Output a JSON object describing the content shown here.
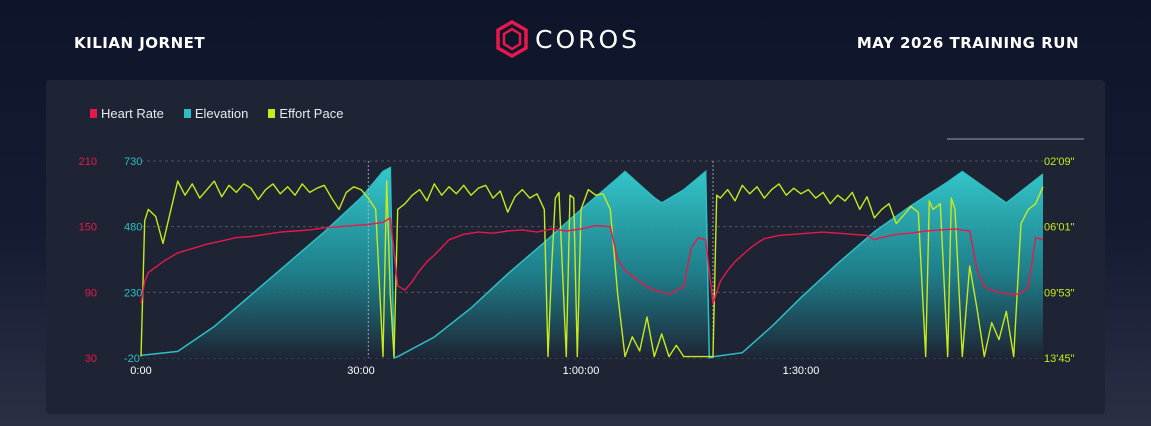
{
  "header": {
    "athlete": "KILIAN JORNET",
    "brand": "COROS",
    "session": "MAY 2026 TRAINING RUN"
  },
  "colors": {
    "heart_rate": "#e8184d",
    "elevation": "#2dbfc4",
    "effort_pace": "#c6ea1b"
  },
  "chart_data": {
    "type": "line",
    "x_unit": "elapsed time (min)",
    "xlim": [
      0,
      123
    ],
    "x_ticks": [
      {
        "value": 0,
        "label": "0:00"
      },
      {
        "value": 30,
        "label": "30:00"
      },
      {
        "value": 60,
        "label": "1:00:00"
      },
      {
        "value": 90,
        "label": "1:30:00"
      }
    ],
    "lap_markers": [
      31,
      78
    ],
    "axes": {
      "heart_rate": {
        "side": "left-outer",
        "ylim": [
          30,
          210
        ],
        "ticks": [
          "210",
          "150",
          "90",
          "30"
        ]
      },
      "elevation": {
        "side": "left-inner",
        "ylim": [
          -20,
          730
        ],
        "ticks": [
          "730",
          "480",
          "230",
          "-20"
        ]
      },
      "effort_pace": {
        "side": "right",
        "ylim_sec_per_km": [
          129,
          825
        ],
        "reversed": true,
        "ticks": [
          "02'09\"",
          "06'01\"",
          "09'53\"",
          "13'45\""
        ]
      }
    },
    "grid": true,
    "legend": {
      "position": "top-left"
    },
    "series": [
      {
        "name": "Heart Rate",
        "color_key": "heart_rate",
        "axis": "heart_rate",
        "points": [
          [
            0,
            80
          ],
          [
            0.5,
            100
          ],
          [
            1,
            108
          ],
          [
            2,
            113
          ],
          [
            3,
            118
          ],
          [
            4,
            122
          ],
          [
            5,
            126
          ],
          [
            6,
            128
          ],
          [
            7,
            130
          ],
          [
            9,
            134
          ],
          [
            11,
            137
          ],
          [
            13,
            140
          ],
          [
            15,
            141
          ],
          [
            17,
            143
          ],
          [
            19,
            145
          ],
          [
            21,
            146
          ],
          [
            23,
            147
          ],
          [
            25,
            149
          ],
          [
            27,
            150
          ],
          [
            29,
            151
          ],
          [
            31,
            152
          ],
          [
            32,
            153
          ],
          [
            33,
            154
          ],
          [
            34,
            158
          ],
          [
            35,
            96
          ],
          [
            36,
            92
          ],
          [
            37,
            100
          ],
          [
            38,
            110
          ],
          [
            39,
            118
          ],
          [
            40,
            124
          ],
          [
            41,
            131
          ],
          [
            42,
            138
          ],
          [
            44,
            143
          ],
          [
            46,
            145
          ],
          [
            48,
            144
          ],
          [
            50,
            146
          ],
          [
            52,
            147
          ],
          [
            54,
            145
          ],
          [
            56,
            148
          ],
          [
            58,
            146
          ],
          [
            60,
            148
          ],
          [
            62,
            151
          ],
          [
            64,
            150
          ],
          [
            65,
            120
          ],
          [
            66,
            110
          ],
          [
            67,
            105
          ],
          [
            68,
            100
          ],
          [
            69,
            95
          ],
          [
            70,
            92
          ],
          [
            71,
            90
          ],
          [
            72,
            88
          ],
          [
            73,
            92
          ],
          [
            74,
            95
          ],
          [
            75,
            130
          ],
          [
            76,
            140
          ],
          [
            77,
            138
          ],
          [
            78,
            80
          ],
          [
            79,
            100
          ],
          [
            80,
            110
          ],
          [
            81,
            118
          ],
          [
            82,
            124
          ],
          [
            83,
            130
          ],
          [
            84,
            135
          ],
          [
            85,
            139
          ],
          [
            87,
            142
          ],
          [
            89,
            143
          ],
          [
            91,
            144
          ],
          [
            93,
            145
          ],
          [
            95,
            144
          ],
          [
            97,
            143
          ],
          [
            99,
            142
          ],
          [
            100,
            138
          ],
          [
            101,
            140
          ],
          [
            103,
            143
          ],
          [
            105,
            144
          ],
          [
            107,
            146
          ],
          [
            109,
            147
          ],
          [
            111,
            148
          ],
          [
            113,
            146
          ],
          [
            114,
            110
          ],
          [
            115,
            95
          ],
          [
            116,
            92
          ],
          [
            117,
            90
          ],
          [
            118,
            89
          ],
          [
            119,
            88
          ],
          [
            120,
            89
          ],
          [
            121,
            95
          ],
          [
            122,
            140
          ],
          [
            123,
            138
          ]
        ]
      },
      {
        "name": "Elevation",
        "color_key": "elevation",
        "axis": "elevation",
        "points": [
          [
            0,
            -10
          ],
          [
            5,
            5
          ],
          [
            10,
            100
          ],
          [
            15,
            220
          ],
          [
            20,
            340
          ],
          [
            25,
            460
          ],
          [
            30,
            590
          ],
          [
            33,
            690
          ],
          [
            34,
            705
          ],
          [
            34.5,
            -20
          ],
          [
            35,
            -15
          ],
          [
            40,
            60
          ],
          [
            45,
            170
          ],
          [
            50,
            300
          ],
          [
            55,
            420
          ],
          [
            60,
            545
          ],
          [
            65,
            665
          ],
          [
            66,
            690
          ],
          [
            70,
            590
          ],
          [
            71,
            570
          ],
          [
            74,
            620
          ],
          [
            77,
            690
          ],
          [
            77.5,
            -20
          ],
          [
            78,
            -15
          ],
          [
            82,
            0
          ],
          [
            86,
            100
          ],
          [
            90,
            210
          ],
          [
            95,
            340
          ],
          [
            100,
            460
          ],
          [
            105,
            560
          ],
          [
            110,
            650
          ],
          [
            112,
            690
          ],
          [
            118,
            570
          ],
          [
            123,
            680
          ]
        ]
      },
      {
        "name": "Effort Pace",
        "color_key": "effort_pace",
        "axis": "effort_pace",
        "points": [
          [
            0,
            820
          ],
          [
            0.5,
            340
          ],
          [
            1,
            300
          ],
          [
            2,
            325
          ],
          [
            3,
            420
          ],
          [
            4,
            310
          ],
          [
            5,
            200
          ],
          [
            6,
            250
          ],
          [
            7,
            210
          ],
          [
            8,
            260
          ],
          [
            9,
            230
          ],
          [
            10,
            200
          ],
          [
            11,
            255
          ],
          [
            12,
            215
          ],
          [
            13,
            240
          ],
          [
            14,
            210
          ],
          [
            15,
            225
          ],
          [
            16,
            265
          ],
          [
            17,
            230
          ],
          [
            18,
            210
          ],
          [
            19,
            245
          ],
          [
            20,
            220
          ],
          [
            21,
            250
          ],
          [
            22,
            210
          ],
          [
            23,
            240
          ],
          [
            24,
            225
          ],
          [
            25,
            215
          ],
          [
            26,
            260
          ],
          [
            27,
            300
          ],
          [
            28,
            240
          ],
          [
            29,
            220
          ],
          [
            30,
            230
          ],
          [
            31,
            260
          ],
          [
            32,
            300
          ],
          [
            33,
            820
          ],
          [
            33.5,
            200
          ],
          [
            34,
            600
          ],
          [
            34.5,
            820
          ],
          [
            35,
            300
          ],
          [
            36,
            280
          ],
          [
            37,
            250
          ],
          [
            38,
            230
          ],
          [
            39,
            270
          ],
          [
            40,
            210
          ],
          [
            41,
            250
          ],
          [
            42,
            220
          ],
          [
            43,
            245
          ],
          [
            44,
            215
          ],
          [
            45,
            250
          ],
          [
            46,
            225
          ],
          [
            47,
            215
          ],
          [
            48,
            260
          ],
          [
            49,
            235
          ],
          [
            50,
            310
          ],
          [
            51,
            255
          ],
          [
            52,
            230
          ],
          [
            53,
            260
          ],
          [
            54,
            245
          ],
          [
            55,
            300
          ],
          [
            55.5,
            820
          ],
          [
            56,
            500
          ],
          [
            56.5,
            260
          ],
          [
            57,
            240
          ],
          [
            58,
            820
          ],
          [
            58.5,
            250
          ],
          [
            59,
            260
          ],
          [
            59.5,
            820
          ],
          [
            60,
            300
          ],
          [
            61,
            230
          ],
          [
            62,
            250
          ],
          [
            63,
            245
          ],
          [
            64,
            300
          ],
          [
            65,
            600
          ],
          [
            66,
            820
          ],
          [
            67,
            750
          ],
          [
            68,
            800
          ],
          [
            69,
            680
          ],
          [
            70,
            820
          ],
          [
            71,
            740
          ],
          [
            72,
            820
          ],
          [
            73,
            780
          ],
          [
            74,
            820
          ],
          [
            77,
            820
          ],
          [
            78,
            820
          ],
          [
            78.5,
            250
          ],
          [
            79,
            260
          ],
          [
            80,
            230
          ],
          [
            81,
            270
          ],
          [
            82,
            215
          ],
          [
            83,
            245
          ],
          [
            84,
            220
          ],
          [
            85,
            260
          ],
          [
            86,
            230
          ],
          [
            87,
            210
          ],
          [
            88,
            250
          ],
          [
            89,
            225
          ],
          [
            90,
            245
          ],
          [
            91,
            230
          ],
          [
            92,
            260
          ],
          [
            93,
            240
          ],
          [
            94,
            280
          ],
          [
            95,
            250
          ],
          [
            96,
            270
          ],
          [
            97,
            240
          ],
          [
            98,
            300
          ],
          [
            99,
            255
          ],
          [
            100,
            330
          ],
          [
            101,
            300
          ],
          [
            102,
            280
          ],
          [
            103,
            350
          ],
          [
            104,
            320
          ],
          [
            105,
            290
          ],
          [
            106,
            310
          ],
          [
            107,
            820
          ],
          [
            107.5,
            270
          ],
          [
            108,
            300
          ],
          [
            109,
            280
          ],
          [
            110,
            820
          ],
          [
            110.5,
            260
          ],
          [
            111,
            300
          ],
          [
            112,
            820
          ],
          [
            113,
            500
          ],
          [
            114,
            650
          ],
          [
            115,
            820
          ],
          [
            116,
            700
          ],
          [
            117,
            760
          ],
          [
            118,
            660
          ],
          [
            119,
            820
          ],
          [
            120,
            350
          ],
          [
            121,
            300
          ],
          [
            122,
            280
          ],
          [
            123,
            220
          ]
        ]
      }
    ]
  }
}
